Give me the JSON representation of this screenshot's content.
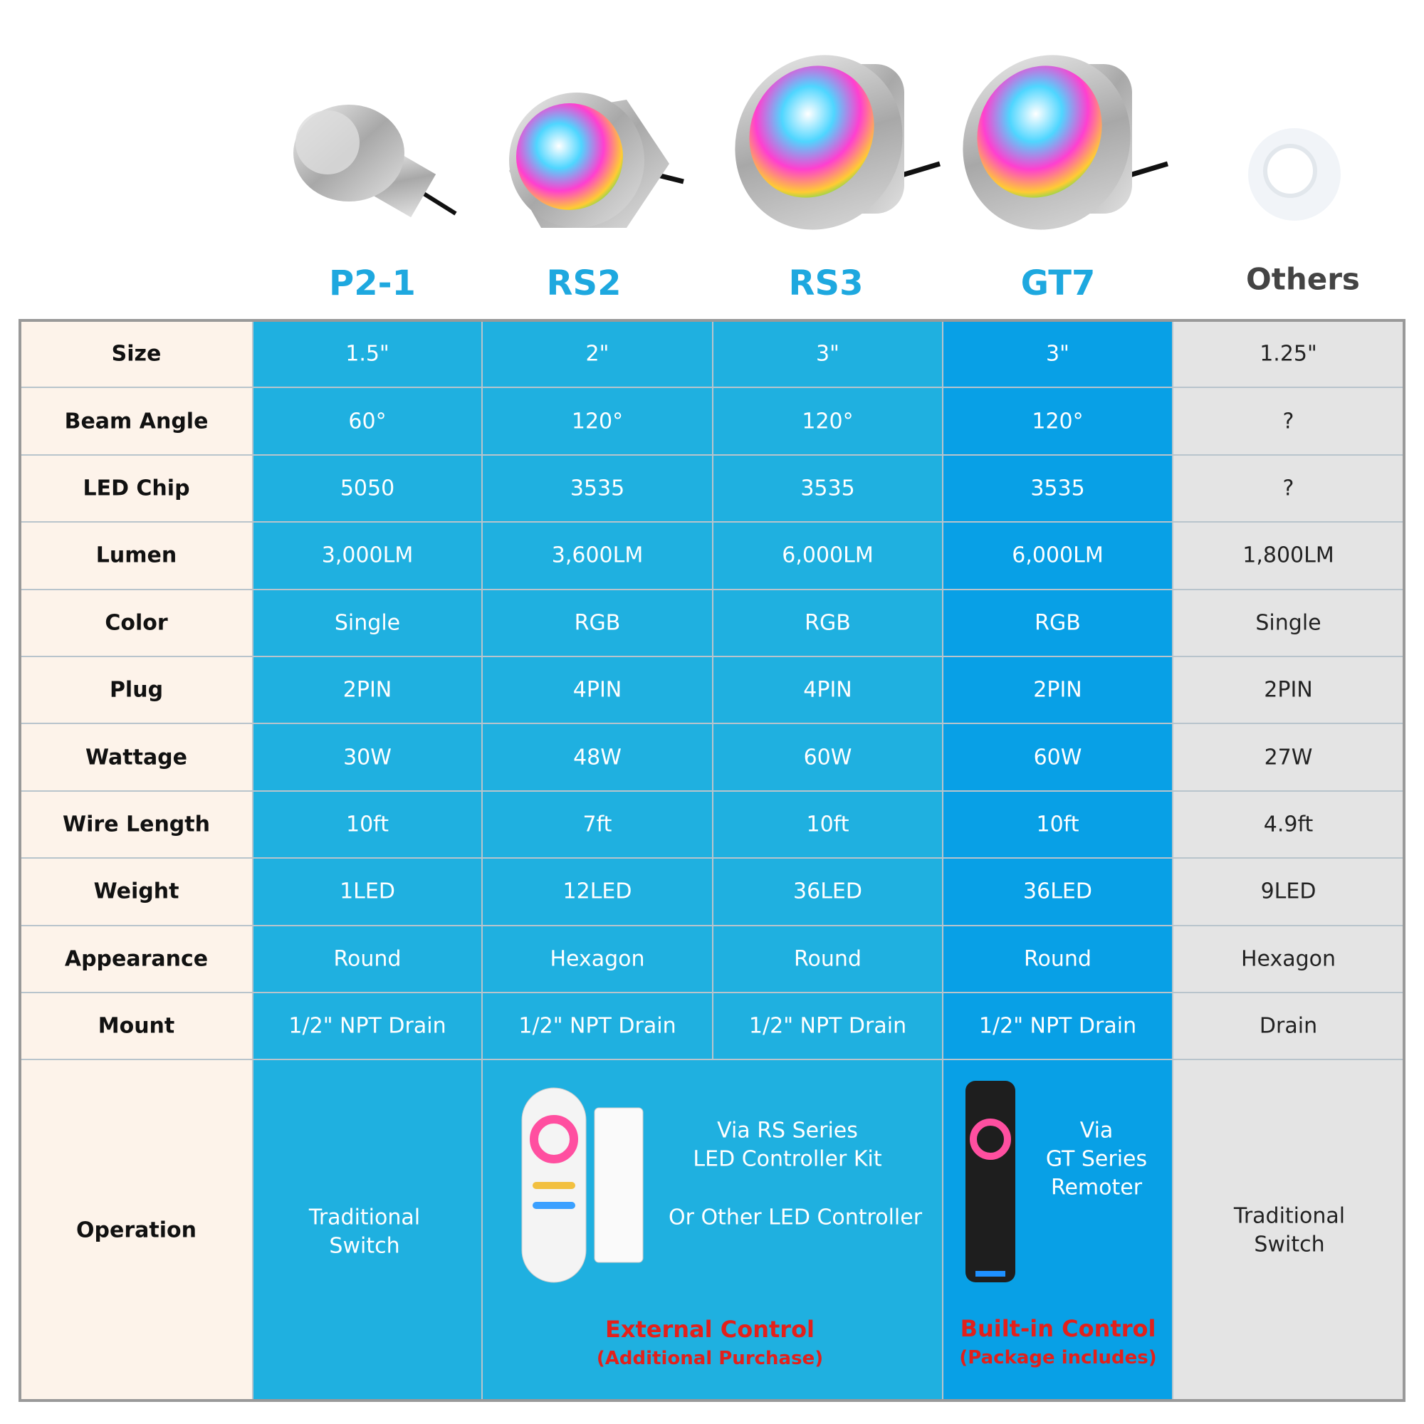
{
  "products": [
    "P2-1",
    "RS2",
    "RS3",
    "GT7",
    "Others"
  ],
  "rows": [
    {
      "label": "Size",
      "values": [
        "1.5\"",
        "2\"",
        "3\"",
        "3\"",
        "1.25\""
      ]
    },
    {
      "label": "Beam Angle",
      "values": [
        "60°",
        "120°",
        "120°",
        "120°",
        "?"
      ]
    },
    {
      "label": "LED Chip",
      "values": [
        "5050",
        "3535",
        "3535",
        "3535",
        "?"
      ]
    },
    {
      "label": "Lumen",
      "values": [
        "3,000LM",
        "3,600LM",
        "6,000LM",
        "6,000LM",
        "1,800LM"
      ]
    },
    {
      "label": "Color",
      "values": [
        "Single",
        "RGB",
        "RGB",
        "RGB",
        "Single"
      ]
    },
    {
      "label": "Plug",
      "values": [
        "2PIN",
        "4PIN",
        "4PIN",
        "2PIN",
        "2PIN"
      ]
    },
    {
      "label": "Wattage",
      "values": [
        "30W",
        "48W",
        "60W",
        "60W",
        "27W"
      ]
    },
    {
      "label": "Wire Length",
      "values": [
        "10ft",
        "7ft",
        "10ft",
        "10ft",
        "4.9ft"
      ]
    },
    {
      "label": "Weight",
      "values": [
        "1LED",
        "12LED",
        "36LED",
        "36LED",
        "9LED"
      ]
    },
    {
      "label": "Appearance",
      "values": [
        "Round",
        "Hexagon",
        "Round",
        "Round",
        "Hexagon"
      ]
    },
    {
      "label": "Mount",
      "values": [
        "1/2\" NPT Drain",
        "1/2\" NPT Drain",
        "1/2\" NPT Drain",
        "1/2\" NPT Drain",
        "Drain"
      ]
    }
  ],
  "operation": {
    "label": "Operation",
    "p21": [
      "Traditional",
      "Switch"
    ],
    "rs": {
      "lines": [
        "Via RS Series",
        "LED Controller Kit"
      ],
      "alt": "Or Other LED Controller",
      "title": "External Control",
      "note": "(Additional Purchase)"
    },
    "gt": {
      "lines": [
        "Via",
        "GT Series",
        "Remoter"
      ],
      "title": "Built-in Control",
      "note": "(Package includes)"
    },
    "others": [
      "Traditional",
      "Switch"
    ]
  }
}
